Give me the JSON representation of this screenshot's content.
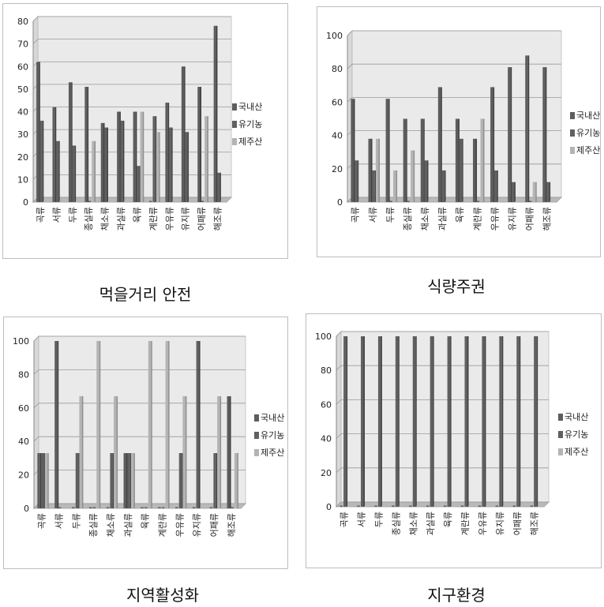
{
  "colors": {
    "domestic": "#5d5d5d",
    "organic": "#606060",
    "jeju": "#b4b4b4",
    "wall": "#eaeaea",
    "floor": "#b9b9b9",
    "grid": "#9a9a9a"
  },
  "chart_data": [
    {
      "type": "bar",
      "title": "먹을거리 안전",
      "categories": [
        "곡류",
        "서류",
        "두류",
        "종실류",
        "채소류",
        "과실류",
        "육류",
        "계란류",
        "우유류",
        "유지류",
        "어패류",
        "해조류"
      ],
      "ylim": [
        0,
        80
      ],
      "yticks": [
        0,
        10,
        20,
        30,
        40,
        50,
        60,
        70,
        80
      ],
      "legend_position": "right",
      "grid": true,
      "series": [
        {
          "name": "국내산",
          "values": [
            62,
            42,
            53,
            51,
            35,
            40,
            40,
            0,
            44,
            60,
            51,
            78
          ]
        },
        {
          "name": "유기농",
          "values": [
            36,
            27,
            25,
            0,
            33,
            36,
            16,
            38,
            33,
            31,
            0,
            13
          ]
        },
        {
          "name": "제주산",
          "values": [
            0,
            0,
            0,
            27,
            0,
            0,
            40,
            31,
            0,
            0,
            38,
            0
          ]
        }
      ]
    },
    {
      "type": "bar",
      "title": "식량주권",
      "categories": [
        "곡류",
        "서류",
        "두류",
        "종실류",
        "채소류",
        "과실류",
        "육류",
        "계란류",
        "우유류",
        "유지류",
        "어패류",
        "해조류"
      ],
      "ylim": [
        0,
        100
      ],
      "yticks": [
        0,
        20,
        40,
        60,
        80,
        100
      ],
      "legend_position": "right",
      "grid": true,
      "series": [
        {
          "name": "국내산",
          "values": [
            62,
            38,
            62,
            50,
            50,
            69,
            50,
            38,
            69,
            81,
            88,
            81
          ]
        },
        {
          "name": "유기농",
          "values": [
            25,
            19,
            0,
            0,
            25,
            19,
            38,
            0,
            19,
            12,
            0,
            12
          ]
        },
        {
          "name": "제주산",
          "values": [
            0,
            38,
            19,
            31,
            0,
            0,
            0,
            50,
            0,
            0,
            12,
            0
          ]
        }
      ]
    },
    {
      "type": "bar",
      "title": "지역활성화",
      "categories": [
        "곡류",
        "서류",
        "두류",
        "종실류",
        "채소류",
        "과실류",
        "육류",
        "계란류",
        "우유류",
        "유지류",
        "어패류",
        "해조류"
      ],
      "ylim": [
        0,
        100
      ],
      "yticks": [
        0,
        20,
        40,
        60,
        80,
        100
      ],
      "legend_position": "right",
      "grid": true,
      "series": [
        {
          "name": "국내산",
          "values": [
            33,
            100,
            0,
            0,
            0,
            33,
            0,
            0,
            0,
            0,
            0,
            67
          ]
        },
        {
          "name": "유기농",
          "values": [
            33,
            0,
            33,
            0,
            33,
            33,
            0,
            0,
            33,
            100,
            33,
            0
          ]
        },
        {
          "name": "제주산",
          "values": [
            33,
            0,
            67,
            100,
            67,
            33,
            100,
            100,
            67,
            0,
            67,
            33
          ]
        }
      ]
    },
    {
      "type": "bar",
      "title": "지구환경",
      "categories": [
        "곡류",
        "서류",
        "두류",
        "종실류",
        "채소류",
        "과실류",
        "육류",
        "계란류",
        "우유류",
        "유지류",
        "어패류",
        "해조류"
      ],
      "ylim": [
        0,
        100
      ],
      "yticks": [
        0,
        20,
        40,
        60,
        80,
        100
      ],
      "legend_position": "right",
      "grid": true,
      "series": [
        {
          "name": "국내산",
          "values": [
            0,
            0,
            0,
            0,
            0,
            0,
            0,
            0,
            0,
            0,
            0,
            0
          ]
        },
        {
          "name": "유기농",
          "values": [
            100,
            100,
            100,
            100,
            100,
            100,
            100,
            100,
            100,
            100,
            100,
            100
          ]
        },
        {
          "name": "제주산",
          "values": [
            0,
            0,
            0,
            0,
            0,
            0,
            0,
            0,
            0,
            0,
            0,
            0
          ]
        }
      ]
    }
  ]
}
